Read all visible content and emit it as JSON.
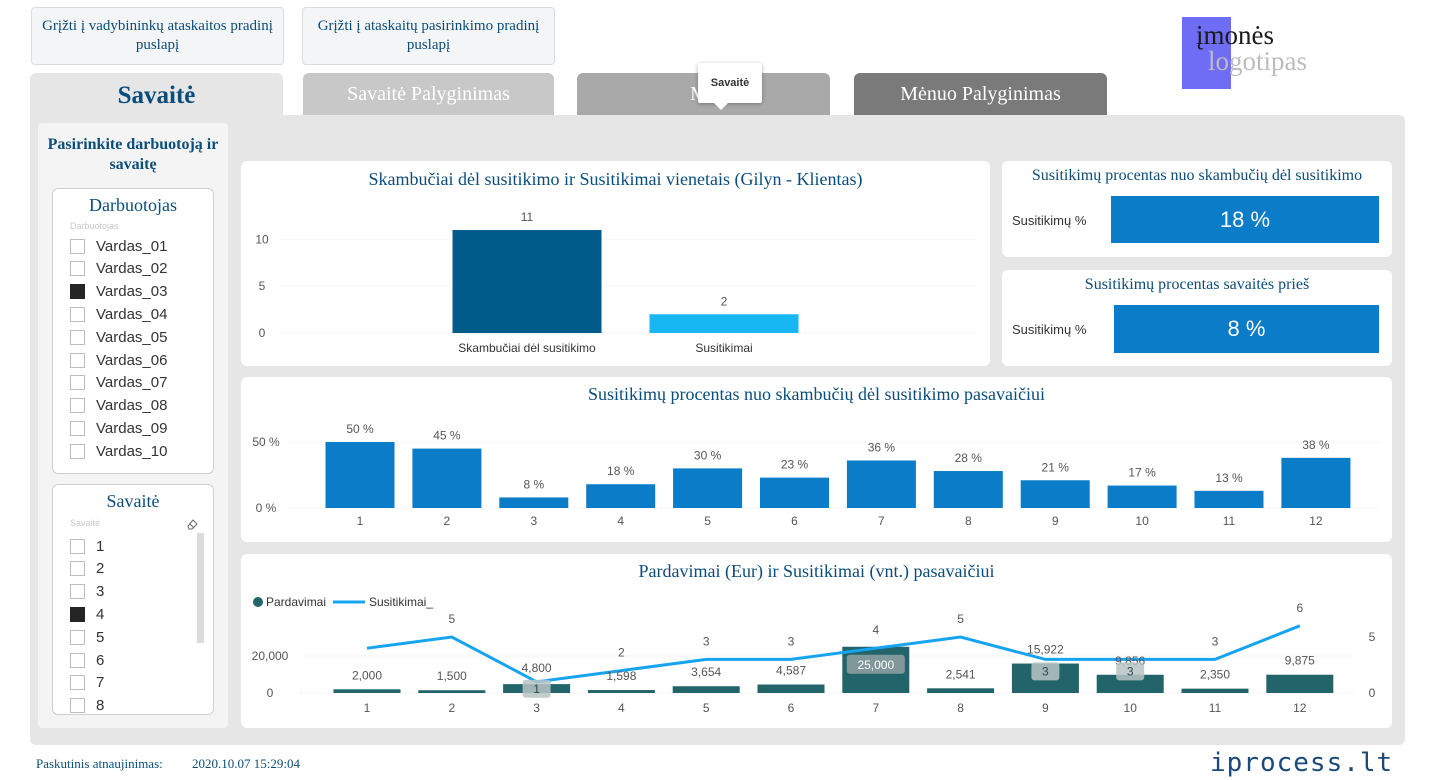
{
  "nav": {
    "btn1": "Grįžti į vadybininkų ataskaitos pradinį puslapį",
    "btn2": "Grįžti į ataskaitų pasirinkimo pradinį puslapį"
  },
  "tabs": [
    {
      "label": "Savaitė"
    },
    {
      "label": "Savaitė Palyginimas"
    },
    {
      "label": "Mė"
    },
    {
      "label": "Mėnuo Palyginimas"
    }
  ],
  "tooltip": "Savaitė",
  "logo": {
    "line1": "įmonės",
    "line2": "logotipas"
  },
  "sidebar": {
    "title": "Pasirinkite darbuotoją ir savaitę",
    "employee_slicer": {
      "title": "Darbuotojas",
      "sub": "Darbuotojas",
      "items": [
        {
          "label": "Vardas_01",
          "checked": false
        },
        {
          "label": "Vardas_02",
          "checked": false
        },
        {
          "label": "Vardas_03",
          "checked": true
        },
        {
          "label": "Vardas_04",
          "checked": false
        },
        {
          "label": "Vardas_05",
          "checked": false
        },
        {
          "label": "Vardas_06",
          "checked": false
        },
        {
          "label": "Vardas_07",
          "checked": false
        },
        {
          "label": "Vardas_08",
          "checked": false
        },
        {
          "label": "Vardas_09",
          "checked": false
        },
        {
          "label": "Vardas_10",
          "checked": false
        }
      ]
    },
    "week_slicer": {
      "title": "Savaitė",
      "sub": "Savaitė",
      "items": [
        {
          "label": "1",
          "checked": false
        },
        {
          "label": "2",
          "checked": false
        },
        {
          "label": "3",
          "checked": false
        },
        {
          "label": "4",
          "checked": true
        },
        {
          "label": "5",
          "checked": false
        },
        {
          "label": "6",
          "checked": false
        },
        {
          "label": "7",
          "checked": false
        },
        {
          "label": "8",
          "checked": false
        }
      ]
    }
  },
  "kpi1": {
    "title": "Susitikimų procentas nuo skambučių dėl susitikimo",
    "label": "Susitikimų %",
    "value": "18 %"
  },
  "kpi2": {
    "title": "Susitikimų procentas savaitės prieš",
    "label": "Susitikimų %",
    "value": "8 %"
  },
  "colors": {
    "dark_blue": "#005a8a",
    "light_blue": "#16b7f2",
    "mid_blue": "#0a7cc8",
    "teal": "#22646a",
    "line": "#16a4f0"
  },
  "chart_data": [
    {
      "type": "bar",
      "title": "Skambučiai dėl susitikimo ir Susitikimai vienetais (Gilyn - Klientas)",
      "categories": [
        "Skambučiai dėl susitikimo",
        "Susitikimai"
      ],
      "values": [
        11,
        2
      ],
      "value_labels": [
        "11",
        "2"
      ],
      "yticks": [
        "0",
        "5",
        "10"
      ],
      "ylim": [
        0,
        12.5
      ]
    },
    {
      "type": "bar",
      "title": "Susitikimų procentas nuo skambučių dėl susitikimo pasavaičiui",
      "categories": [
        "1",
        "2",
        "3",
        "4",
        "5",
        "6",
        "7",
        "8",
        "9",
        "10",
        "11",
        "12"
      ],
      "values": [
        50,
        45,
        8,
        18,
        30,
        23,
        36,
        28,
        21,
        17,
        13,
        38
      ],
      "value_labels": [
        "50 %",
        "45 %",
        "8 %",
        "18 %",
        "30 %",
        "23 %",
        "36 %",
        "28 %",
        "21 %",
        "17 %",
        "13 %",
        "38 %"
      ],
      "yticks": [
        "0 %",
        "50 %"
      ],
      "ylim": [
        0,
        55
      ]
    },
    {
      "type": "bar",
      "title": "Pardavimai (Eur) ir Susitikimai (vnt.) pasavaičiui",
      "legend": [
        "Pardavimai",
        "Susitikimai_"
      ],
      "categories": [
        "1",
        "2",
        "3",
        "4",
        "5",
        "6",
        "7",
        "8",
        "9",
        "10",
        "11",
        "12"
      ],
      "series": [
        {
          "name": "Pardavimai",
          "type": "bar",
          "values": [
            2000,
            1500,
            4800,
            1598,
            3654,
            4587,
            25000,
            2541,
            15922,
            9856,
            2350,
            9875
          ],
          "labels": [
            "2,000",
            "1,500",
            "4,800",
            "1,598",
            "3,654",
            "4,587",
            "25,000",
            "2,541",
            "15,922",
            "9,856",
            "2,350",
            "9,875"
          ]
        },
        {
          "name": "Susitikimai_",
          "type": "line",
          "values": [
            4,
            5,
            1,
            2,
            3,
            3,
            4,
            5,
            3,
            3,
            3,
            6
          ],
          "labels": [
            "",
            "5",
            "1",
            "2",
            "3",
            "3",
            "4",
            "5",
            "3",
            "3",
            "3",
            "6"
          ]
        }
      ],
      "yticks_left": [
        "0",
        "20,000"
      ],
      "yticks_right": [
        "0",
        "5"
      ],
      "ylim_left": [
        0,
        26500
      ],
      "ylim_right": [
        0,
        6.2
      ]
    }
  ],
  "footer": {
    "label": "Paskutinis atnaujinimas:",
    "time": "2020.10.07 15:29:04",
    "brand": "iprocess.lt"
  }
}
